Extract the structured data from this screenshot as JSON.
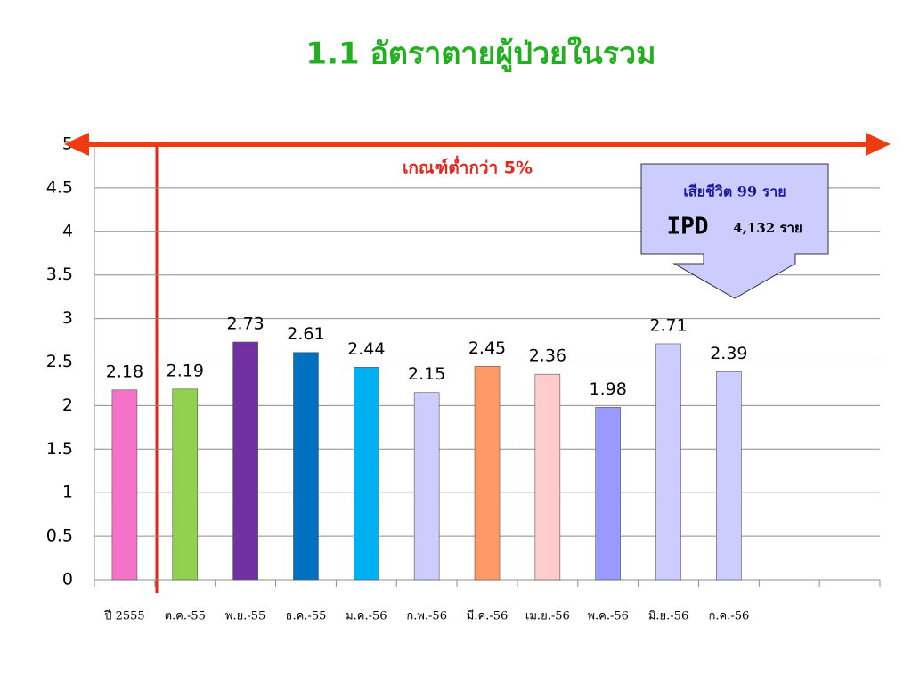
{
  "chart_data": {
    "type": "bar",
    "title": "1.1 อัตราตายผู้ป่วยในรวม",
    "categories": [
      "ปี 2555",
      "ต.ค.-55",
      "พ.ย.-55",
      "ธ.ค.-55",
      "ม.ค.-56",
      "ก.พ.-56",
      "มี.ค.-56",
      "เม.ย.-56",
      "พ.ค.-56",
      "มิ.ย.-56",
      "ก.ค.-56",
      null,
      null
    ],
    "values": [
      2.18,
      2.19,
      2.73,
      2.61,
      2.44,
      2.15,
      2.45,
      2.36,
      1.98,
      2.71,
      2.39,
      null,
      null
    ],
    "colors": [
      "#f472c8",
      "#92d050",
      "#7030a0",
      "#0070c0",
      "#00b0f0",
      "#ccccff",
      "#ff9966",
      "#ffcccc",
      "#9999ff",
      "#ccccff",
      "#ccccff",
      null,
      null
    ],
    "ylim": [
      0,
      5
    ],
    "yticks": [
      0,
      0.5,
      1,
      1.5,
      2,
      2.5,
      3,
      3.5,
      4,
      4.5,
      5
    ],
    "grid": true,
    "threshold": {
      "value": 5,
      "label": "เกณฑ์ต่ำกว่า 5%"
    },
    "callout": {
      "line1": "เสียชีวิต 99 ราย",
      "line2a": "IPD",
      "line2b": "4,132 ราย"
    }
  }
}
